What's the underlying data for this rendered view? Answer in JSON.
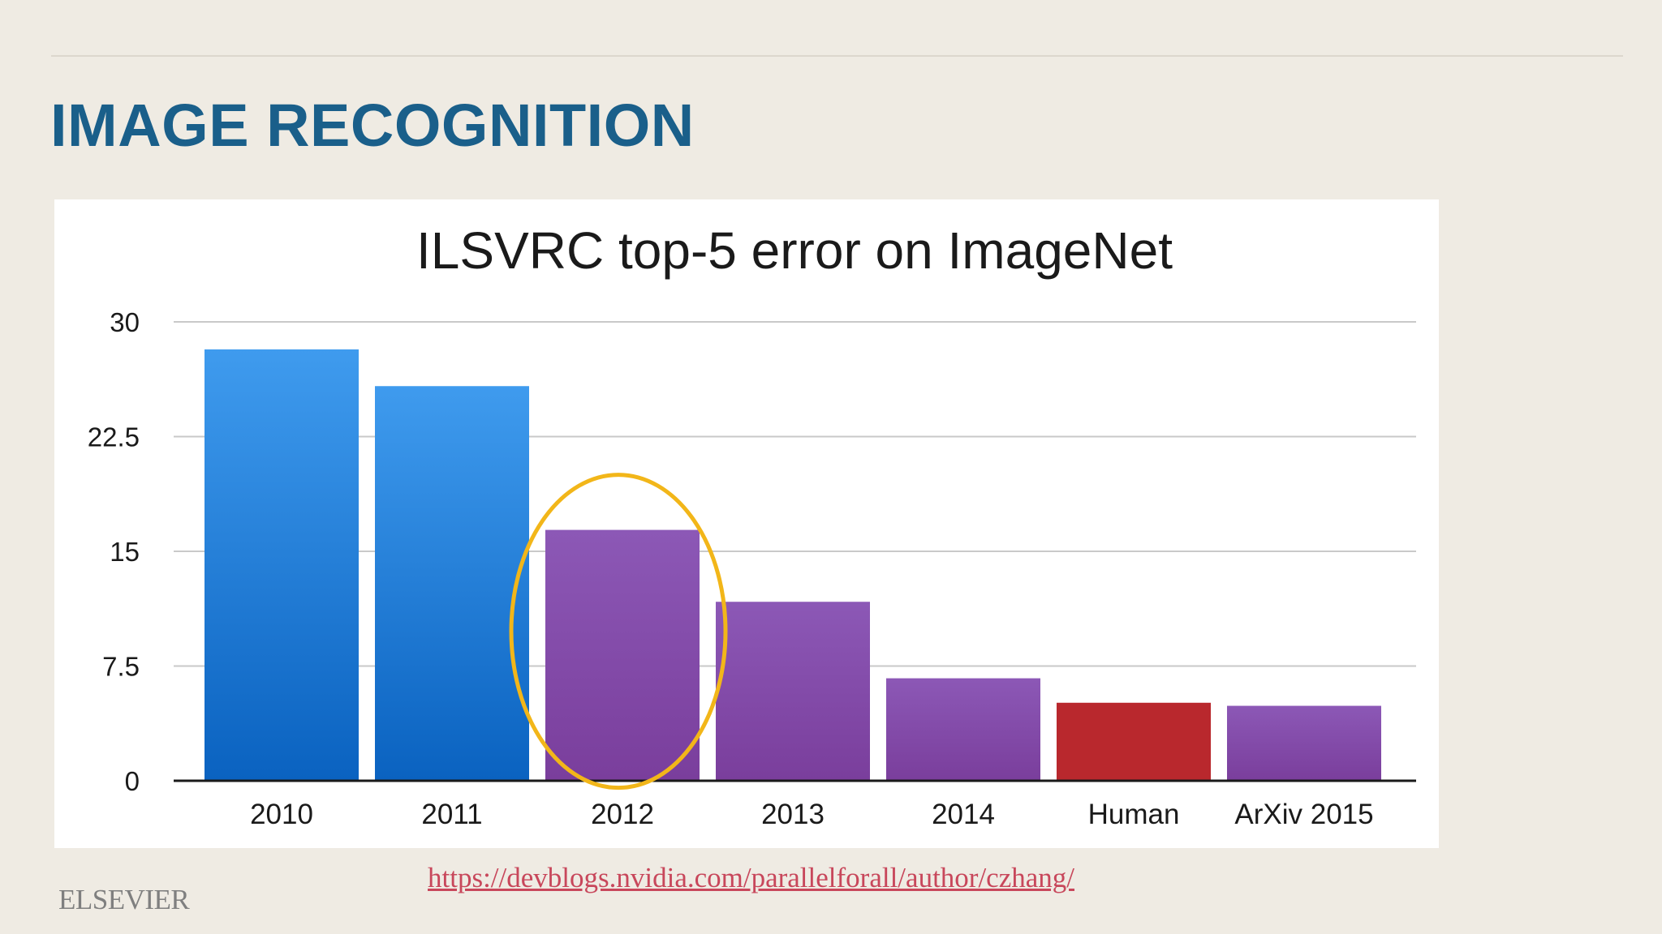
{
  "slide": {
    "title": "IMAGE RECOGNITION",
    "source_url": "https://devblogs.nvidia.com/parallelforall/author/czhang/",
    "logo_text": "ELSEVIER"
  },
  "colors": {
    "title": "#1a5f8a",
    "blue_top": "#3f9bee",
    "blue_bottom": "#0a62c0",
    "purple_top": "#8c58b6",
    "purple_bottom": "#7a3e9c",
    "red": "#b9282d",
    "highlight_circle": "#f2b619",
    "link": "#c8475b"
  },
  "chart_data": {
    "type": "bar",
    "title": "ILSVRC top-5 error on ImageNet",
    "xlabel": "",
    "ylabel": "",
    "ylim": [
      0,
      30
    ],
    "yticks": [
      0,
      7.5,
      15,
      22.5,
      30
    ],
    "ytick_labels": [
      "0",
      "7.5",
      "15",
      "22.5",
      "30"
    ],
    "grid": true,
    "categories": [
      "2010",
      "2011",
      "2012",
      "2013",
      "2014",
      "Human",
      "ArXiv 2015"
    ],
    "values": [
      28.2,
      25.8,
      16.4,
      11.7,
      6.7,
      5.1,
      4.9
    ],
    "bar_styles": [
      "blue",
      "blue",
      "purple",
      "purple",
      "purple",
      "red",
      "purple"
    ],
    "highlighted_category": "2012"
  }
}
